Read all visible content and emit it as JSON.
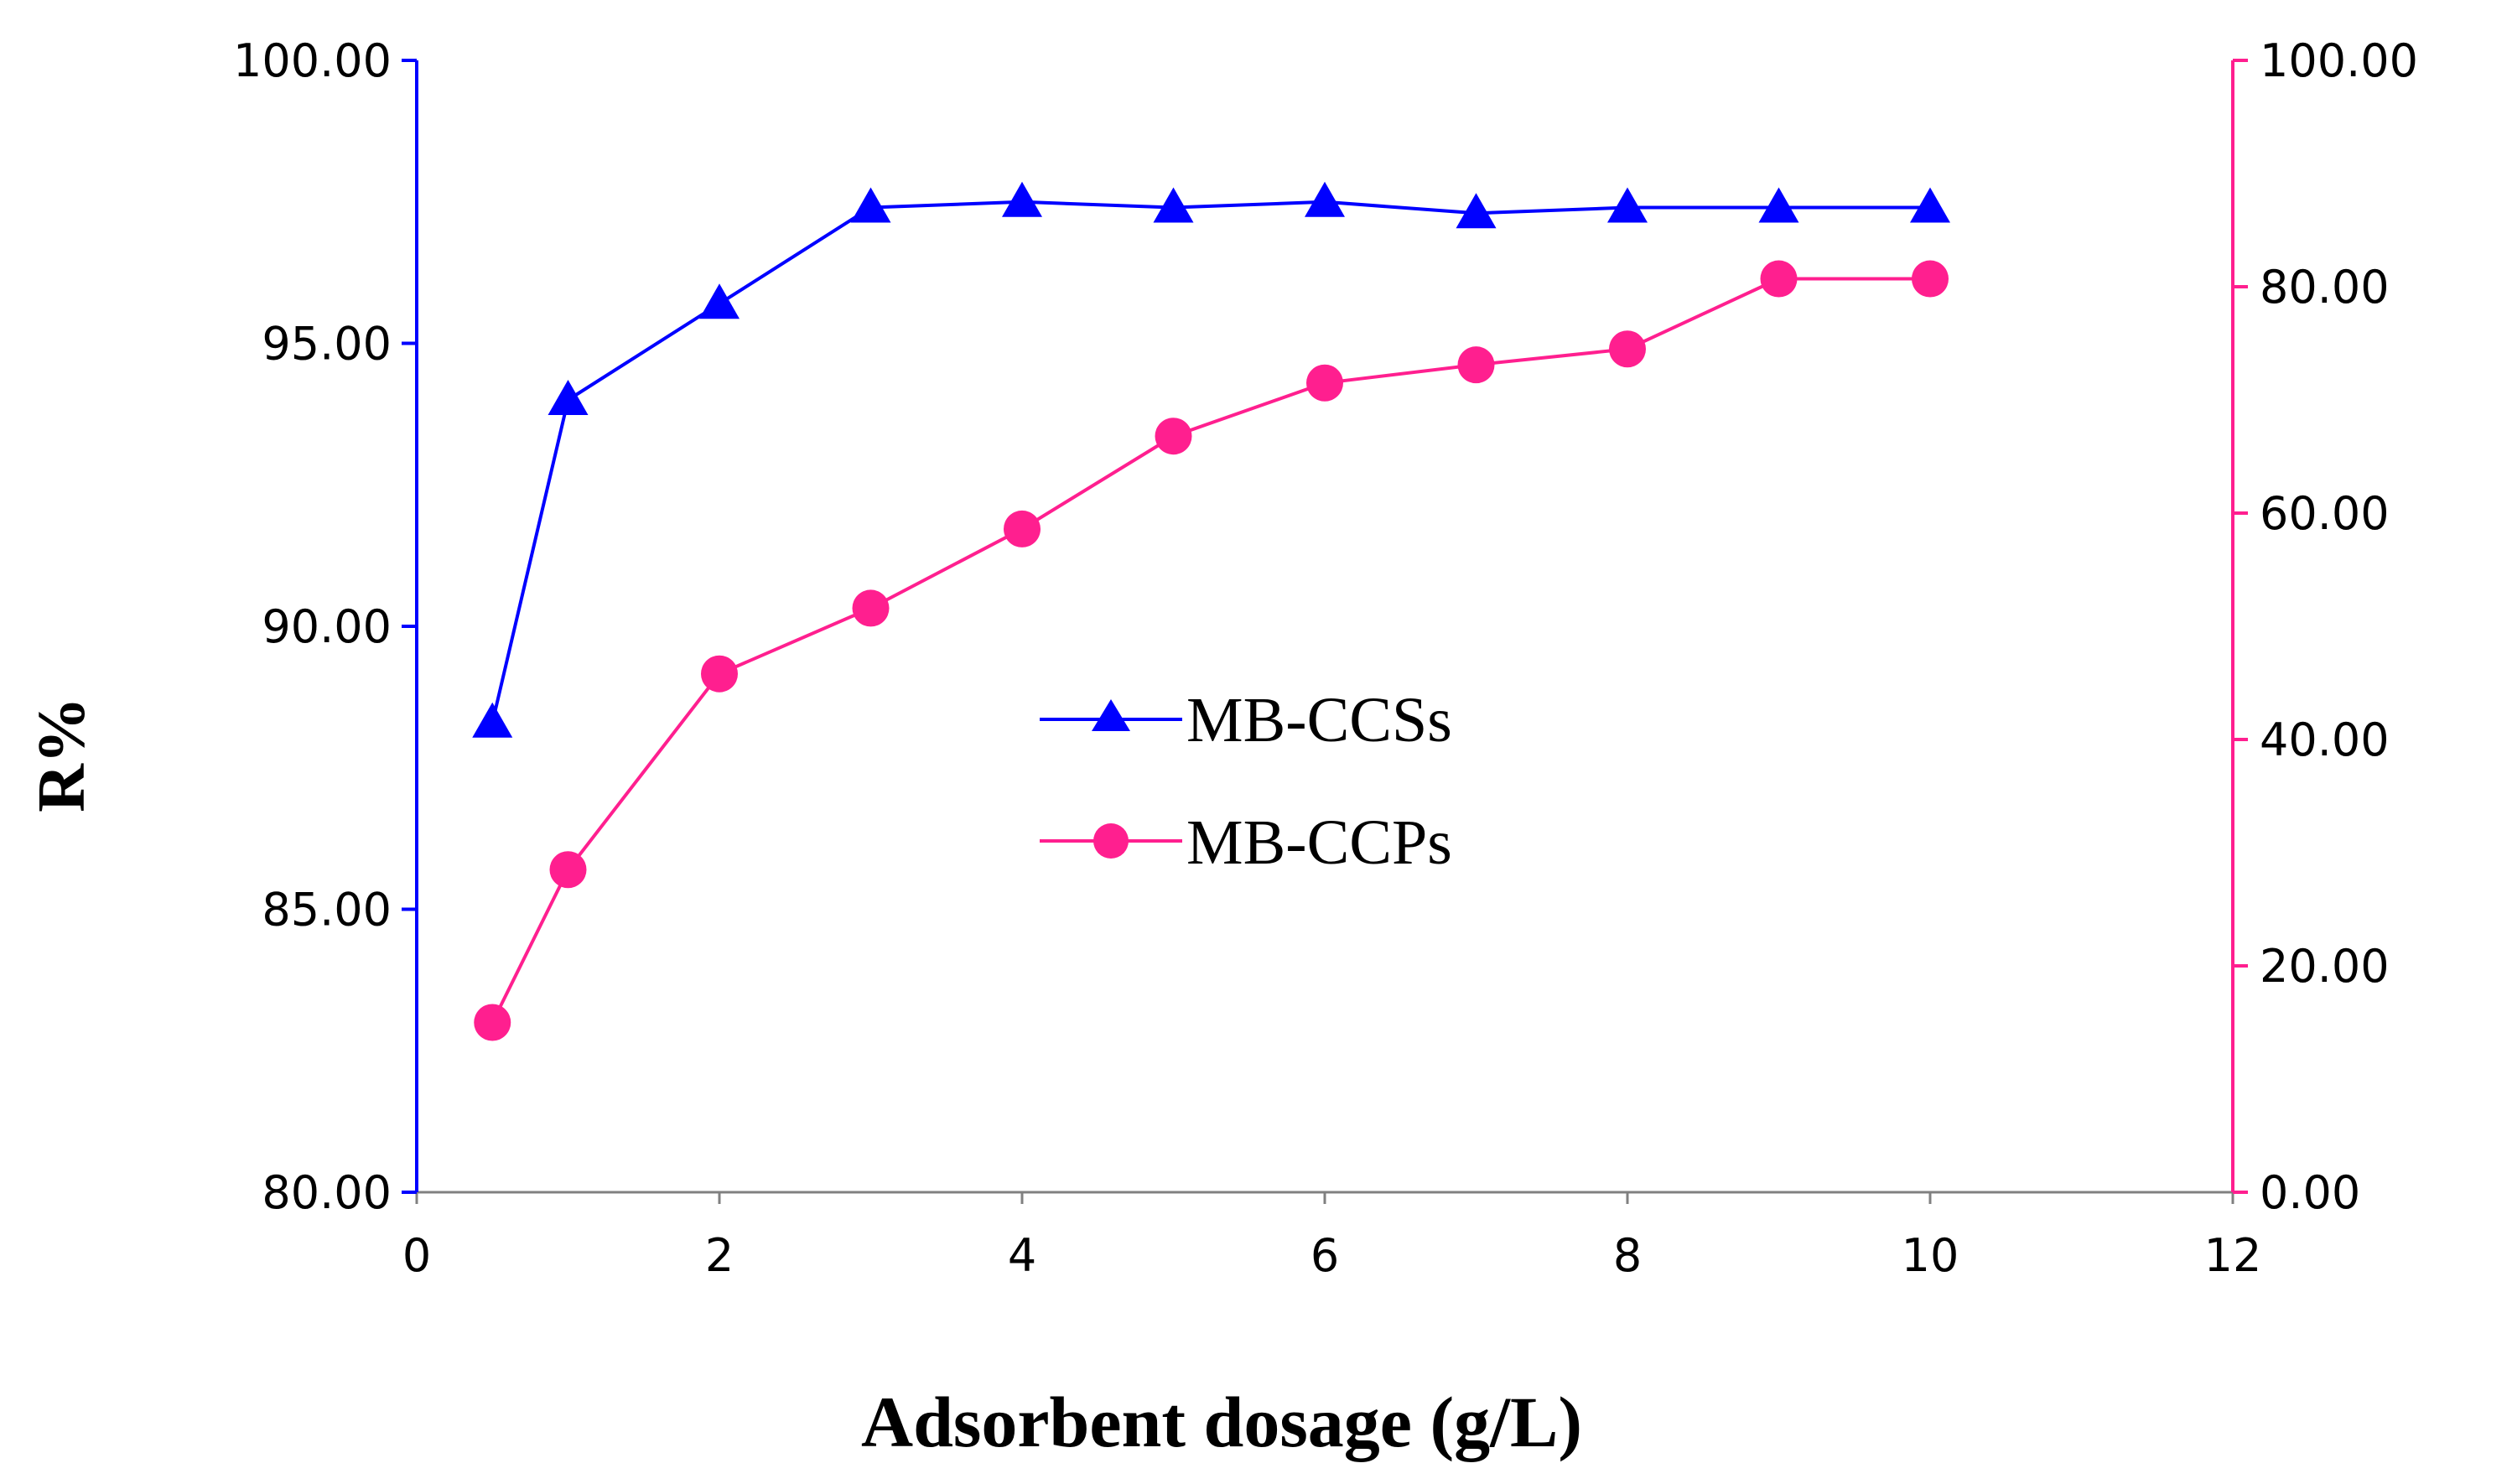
{
  "chart_data": {
    "type": "line",
    "title": "",
    "xlabel": "Adsorbent dosage (g/L)",
    "ylabel": "R%",
    "xlim": [
      0,
      12
    ],
    "x_ticks": [
      0,
      2,
      4,
      6,
      8,
      10,
      12
    ],
    "ylim_left": [
      80,
      100
    ],
    "y_ticks_left": [
      "80.00",
      "85.00",
      "90.00",
      "95.00",
      "100.00"
    ],
    "ylim_right": [
      0,
      100
    ],
    "y_ticks_right": [
      "0.00",
      "20.00",
      "40.00",
      "60.00",
      "80.00",
      "100.00"
    ],
    "grid": false,
    "legend_position": "center",
    "series": [
      {
        "name": "MB-CCSs",
        "axis": "left",
        "color": "#0000ff",
        "marker": "triangle",
        "x": [
          0.5,
          1,
          2,
          3,
          4,
          5,
          6,
          7,
          8,
          9,
          10
        ],
        "values": [
          88.3,
          94.0,
          95.7,
          97.4,
          97.5,
          97.4,
          97.5,
          97.3,
          97.4,
          97.4,
          97.4
        ]
      },
      {
        "name": "MB-CCPs",
        "axis": "right",
        "color": "#ff1f8f",
        "marker": "circle",
        "x": [
          0.5,
          1,
          2,
          3,
          4,
          5,
          6,
          7,
          8,
          9,
          10
        ],
        "values": [
          15.0,
          28.5,
          45.8,
          51.6,
          58.6,
          66.8,
          71.5,
          73.1,
          74.5,
          80.7,
          80.7
        ]
      }
    ]
  }
}
